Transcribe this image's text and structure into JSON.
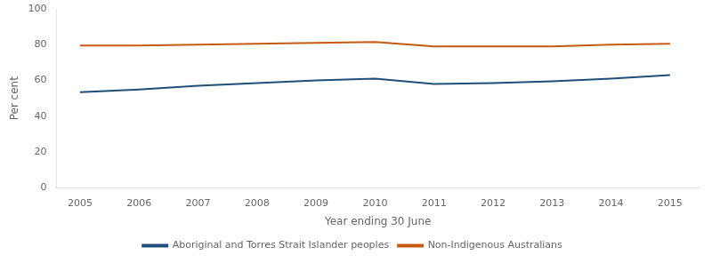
{
  "chart_data": {
    "type": "line",
    "x": [
      2005,
      2006,
      2007,
      2008,
      2009,
      2010,
      2011,
      2012,
      2013,
      2014,
      2015
    ],
    "series": [
      {
        "name": "Aboriginal and Torres Strait Islander peoples",
        "color": "#1F4E79",
        "values": [
          53.5,
          55.0,
          57.0,
          58.5,
          60.0,
          61.0,
          58.0,
          58.5,
          59.5,
          61.0,
          63.0
        ]
      },
      {
        "name": "Non-Indigenous Australians",
        "color": "#C55A11",
        "values": [
          79.5,
          79.5,
          80.0,
          80.5,
          81.0,
          81.5,
          79.0,
          79.0,
          79.0,
          80.0,
          80.5
        ]
      }
    ],
    "xlabel": "Year ending 30 June",
    "ylabel": "Per cent",
    "xlim": [
      2004.6,
      2015.5
    ],
    "xticks": [
      2005,
      2006,
      2007,
      2008,
      2009,
      2010,
      2011,
      2012,
      2013,
      2014,
      2015
    ],
    "ylim": [
      0,
      100
    ],
    "yticks": [
      0,
      20,
      40,
      60,
      80,
      100
    ],
    "grid": false,
    "legend": "bottom"
  }
}
